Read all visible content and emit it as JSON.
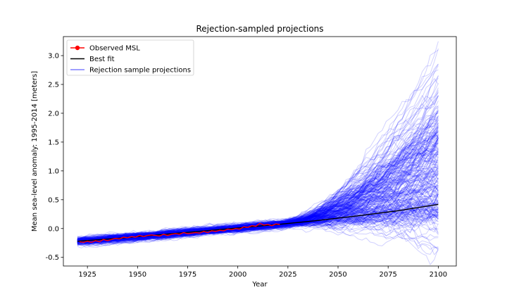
{
  "chart_data": {
    "type": "line",
    "title": "Rejection-sampled projections",
    "xlabel": "Year",
    "ylabel": "Mean sea-level anomaly: 1995-2014 [meters]",
    "xlim": [
      1913,
      2109
    ],
    "ylim": [
      -0.65,
      3.33
    ],
    "x_ticks": [
      1925,
      1950,
      1975,
      2000,
      2025,
      2050,
      2075,
      2100
    ],
    "y_ticks": [
      -0.5,
      0.0,
      0.5,
      1.0,
      1.5,
      2.0,
      2.5,
      3.0
    ],
    "grid": false,
    "legend_position": "top-left",
    "legend": [
      {
        "label": "Observed MSL",
        "color": "#ff0000",
        "marker": "circle"
      },
      {
        "label": "Best fit",
        "color": "#000000"
      },
      {
        "label": "Rejection sample projections",
        "color": "#0000ff"
      }
    ],
    "series": [
      {
        "name": "Observed MSL",
        "color": "#ff0000",
        "x": [
          1921,
          1923,
          1925,
          1927,
          1929,
          1931,
          1933,
          1935,
          1937,
          1939,
          1941,
          1943,
          1945,
          1947,
          1949,
          1951,
          1953,
          1955,
          1957,
          1959,
          1961,
          1963,
          1965,
          1967,
          1969,
          1971,
          1973,
          1975,
          1977,
          1979,
          1981,
          1983,
          1985,
          1987,
          1989,
          1991,
          1993,
          1995,
          1997,
          1999,
          2001,
          2003,
          2005,
          2007,
          2009,
          2011,
          2013,
          2015,
          2017,
          2019,
          2021
        ],
        "y": [
          -0.23,
          -0.24,
          -0.22,
          -0.24,
          -0.21,
          -0.23,
          -0.19,
          -0.21,
          -0.19,
          -0.17,
          -0.18,
          -0.15,
          -0.16,
          -0.14,
          -0.15,
          -0.12,
          -0.14,
          -0.12,
          -0.11,
          -0.12,
          -0.13,
          -0.1,
          -0.12,
          -0.1,
          -0.09,
          -0.1,
          -0.07,
          -0.09,
          -0.08,
          -0.07,
          -0.08,
          -0.05,
          -0.07,
          -0.04,
          -0.05,
          -0.03,
          -0.04,
          -0.01,
          -0.02,
          0.0,
          -0.01,
          0.03,
          0.02,
          0.05,
          0.04,
          0.09,
          0.06,
          0.07,
          0.05,
          0.08,
          0.07
        ]
      },
      {
        "name": "Best fit",
        "color": "#000000",
        "x": [
          1920,
          1940,
          1960,
          1980,
          2000,
          2020,
          2040,
          2060,
          2080,
          2100
        ],
        "y": [
          -0.22,
          -0.17,
          -0.11,
          -0.05,
          0.01,
          0.07,
          0.14,
          0.22,
          0.31,
          0.42
        ]
      }
    ],
    "projections": {
      "name": "Rejection sample projections",
      "color": "#0000ff",
      "count": 260,
      "x_start": 1920,
      "x_end": 2100,
      "divergence_start": 2022,
      "y_start_mean": -0.22,
      "y_at_divergence_mean": 0.07,
      "y_end_median": 0.95,
      "y_end_min": -0.45,
      "y_end_max": 3.22
    }
  }
}
